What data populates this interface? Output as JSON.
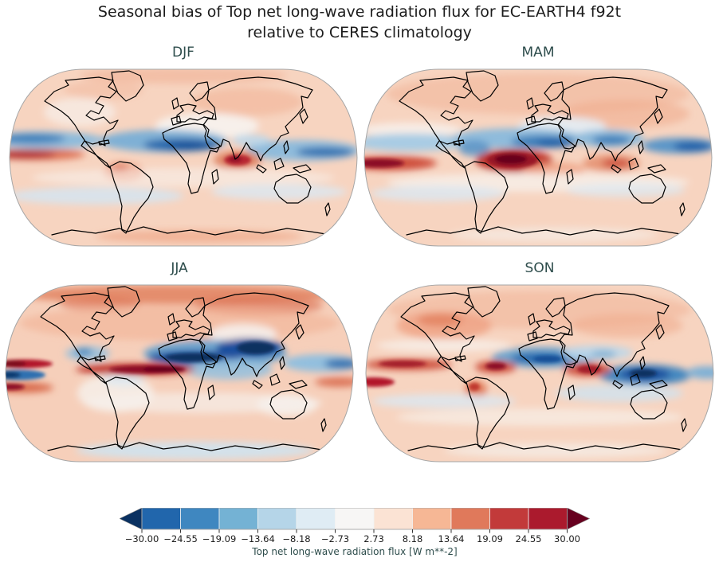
{
  "figure": {
    "title": "Seasonal bias of Top net long-wave radiation flux for EC-EARTH4 f92t\nrelative to CERES climatology"
  },
  "panels": [
    {
      "id": "djf",
      "label": "DJF"
    },
    {
      "id": "mam",
      "label": "MAM"
    },
    {
      "id": "jja",
      "label": "JJA"
    },
    {
      "id": "son",
      "label": "SON"
    }
  ],
  "colorbar": {
    "label": "Top net long-wave radiation flux [W m**-2]",
    "tick_labels": [
      "−30.00",
      "−24.55",
      "−19.09",
      "−13.64",
      "−8.18",
      "−2.73",
      "2.73",
      "8.18",
      "13.64",
      "19.09",
      "24.55",
      "30.00"
    ],
    "segment_colors": [
      "#2166ac",
      "#3f87c0",
      "#74b2d4",
      "#b5d5e8",
      "#dfecf4",
      "#f7f6f5",
      "#fbe3d4",
      "#f6b795",
      "#e0795b",
      "#c23a3a",
      "#ab1a2d"
    ],
    "arrow_left_color": "#0a3161",
    "arrow_right_color": "#67001f",
    "extend": "both"
  },
  "chart_data": {
    "type": "heatmap",
    "variant": "filled-contour global bias maps (Robinson projection), 2x2 seasonal grid",
    "title": "Seasonal bias of Top net long-wave radiation flux for EC-EARTH4 f92t relative to CERES climatology",
    "panels": [
      "DJF",
      "MAM",
      "JJA",
      "SON"
    ],
    "colorbar": {
      "label": "Top net long-wave radiation flux [W m**-2]",
      "ticks": [
        -30.0,
        -24.55,
        -19.09,
        -13.64,
        -8.18,
        -2.73,
        2.73,
        8.18,
        13.64,
        19.09,
        24.55,
        30.0
      ],
      "range": [
        -30,
        30
      ],
      "units": "W m**-2",
      "colormap": "RdBu_r (11 discrete levels, extended both ends)",
      "legend_position": "bottom"
    },
    "pattern_notes": {
      "DJF": "weak positive (red) bias over most land/high latitudes; negative (blue) band along tropics over Atlantic-Africa and west Pacific; strong positive streak in east tropical Pacific and strong positive blob over south Indian Ocean",
      "MAM": "positive bias over northern continents; negative tropical band over Africa/Indian Ocean/west Pacific; very strong positive blobs over tropical Atlantic off Brazil and east Pacific",
      "JJA": "strong positive bias at high northern latitudes; very strong negative blob over Sahara-Arabia-India; strong positive ITCZ streak over equatorial Atlantic/Pacific",
      "SON": "positive bias over northern continents; negative band over Sahel and strong negative blob over Maritime Continent; positive ITCZ blobs over Pacific, Atlantic and east Africa"
    }
  }
}
